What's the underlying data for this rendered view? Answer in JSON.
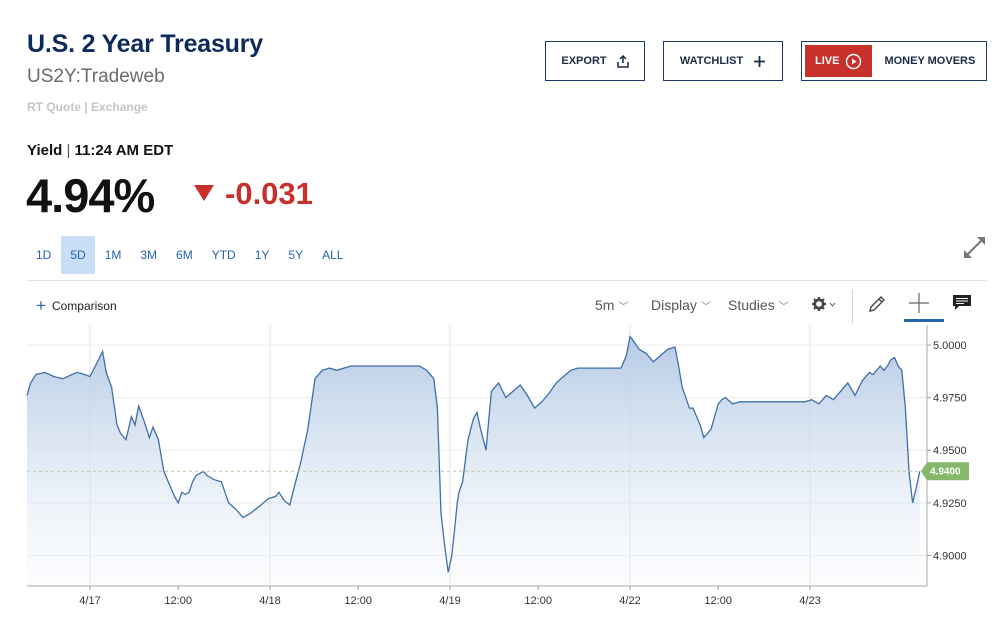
{
  "header": {
    "title": "U.S. 2 Year Treasury",
    "symbol": "US2Y:Tradeweb",
    "quote_source": "RT Quote | Exchange"
  },
  "actions": {
    "export_label": "EXPORT",
    "watchlist_label": "WATCHLIST",
    "live_label": "LIVE",
    "money_movers_label": "MONEY MOVERS"
  },
  "quote": {
    "yield_label": "Yield",
    "separator": "|",
    "time": "11:24 AM EDT",
    "price": "4.94%",
    "change": "-0.031",
    "change_color": "#c8302c"
  },
  "ranges": [
    {
      "label": "1D"
    },
    {
      "label": "5D"
    },
    {
      "label": "1M"
    },
    {
      "label": "3M"
    },
    {
      "label": "6M"
    },
    {
      "label": "YTD"
    },
    {
      "label": "1Y"
    },
    {
      "label": "5Y"
    },
    {
      "label": "ALL"
    }
  ],
  "selected_range": "5D",
  "toolbar": {
    "comparison_label": "Comparison",
    "interval_label": "5m",
    "display_label": "Display",
    "studies_label": "Studies"
  },
  "chart_data": {
    "type": "area",
    "line_color": "#3f6fa8",
    "current_value": 4.94,
    "current_label": "4.9400",
    "current_label_color": "#86b76a",
    "ylim": [
      4.8855,
      5.0095
    ],
    "y_ticks": [
      5.0,
      4.975,
      4.95,
      4.925,
      4.9
    ],
    "y_tick_labels": [
      "5.0000",
      "4.9750",
      "4.9500",
      "4.9250",
      "4.9000"
    ],
    "x_ticks": [
      {
        "t": 0.35,
        "label": "4/17"
      },
      {
        "t": 0.84,
        "label": "12:00"
      },
      {
        "t": 1.35,
        "label": "4/18"
      },
      {
        "t": 1.84,
        "label": "12:00"
      },
      {
        "t": 2.35,
        "label": "4/19"
      },
      {
        "t": 2.84,
        "label": "12:00"
      },
      {
        "t": 3.35,
        "label": "4/22"
      },
      {
        "t": 3.84,
        "label": "12:00"
      },
      {
        "t": 4.35,
        "label": "4/23"
      }
    ],
    "grid_vertical_t": [
      0.35,
      1.35,
      2.35,
      3.35,
      4.35
    ],
    "grid": true,
    "series": [
      {
        "t": [
          0.0,
          0.02,
          0.05,
          0.1,
          0.15,
          0.2,
          0.25,
          0.28,
          0.32,
          0.35,
          0.38,
          0.42,
          0.44,
          0.47,
          0.5,
          0.52,
          0.55,
          0.58,
          0.6,
          0.62,
          0.65,
          0.68,
          0.7,
          0.73,
          0.76,
          0.8,
          0.82,
          0.84,
          0.86,
          0.88,
          0.9,
          0.92,
          0.94,
          0.96,
          0.98,
          1.0,
          1.04,
          1.08,
          1.12,
          1.16,
          1.2,
          1.24,
          1.27,
          1.3,
          1.34,
          1.38,
          1.4,
          1.43,
          1.46,
          1.48,
          1.52,
          1.56,
          1.6,
          1.64,
          1.68,
          1.72,
          1.76,
          1.8,
          1.84,
          1.88,
          1.92,
          1.96,
          2.0,
          2.06,
          2.12,
          2.18,
          2.22,
          2.26,
          2.28,
          2.3,
          2.32,
          2.34,
          2.36,
          2.38,
          2.39,
          2.4,
          2.42,
          2.45,
          2.48,
          2.5,
          2.52,
          2.55,
          2.58,
          2.62,
          2.66,
          2.7,
          2.74,
          2.78,
          2.82,
          2.86,
          2.9,
          2.94,
          2.98,
          3.02,
          3.06,
          3.1,
          3.14,
          3.18,
          3.22,
          3.26,
          3.3,
          3.33,
          3.35,
          3.36,
          3.4,
          3.44,
          3.48,
          3.52,
          3.56,
          3.6,
          3.62,
          3.64,
          3.66,
          3.68,
          3.7,
          3.72,
          3.74,
          3.76,
          3.78,
          3.8,
          3.82,
          3.84,
          3.86,
          3.88,
          3.92,
          3.96,
          4.0,
          4.04,
          4.08,
          4.12,
          4.16,
          4.2,
          4.24,
          4.28,
          4.32,
          4.36,
          4.4,
          4.44,
          4.48,
          4.52,
          4.56,
          4.6,
          4.64,
          4.66,
          4.68,
          4.7,
          4.72,
          4.74,
          4.76,
          4.78,
          4.8,
          4.82,
          4.84,
          4.86,
          4.88,
          4.9,
          4.92,
          4.94,
          4.96
        ],
        "values": [
          4.976,
          4.982,
          4.986,
          4.987,
          4.985,
          4.984,
          4.986,
          4.987,
          4.986,
          4.985,
          4.99,
          4.997,
          4.987,
          4.98,
          4.962,
          4.958,
          4.955,
          4.966,
          4.962,
          4.971,
          4.964,
          4.956,
          4.961,
          4.955,
          4.94,
          4.932,
          4.928,
          4.925,
          4.93,
          4.929,
          4.93,
          4.935,
          4.938,
          4.939,
          4.94,
          4.938,
          4.936,
          4.935,
          4.925,
          4.922,
          4.918,
          4.92,
          4.922,
          4.924,
          4.927,
          4.928,
          4.93,
          4.926,
          4.924,
          4.931,
          4.944,
          4.96,
          4.984,
          4.988,
          4.989,
          4.988,
          4.989,
          4.99,
          4.99,
          4.99,
          4.99,
          4.99,
          4.99,
          4.99,
          4.99,
          4.99,
          4.988,
          4.984,
          4.97,
          4.92,
          4.905,
          4.892,
          4.9,
          4.916,
          4.925,
          4.93,
          4.935,
          4.955,
          4.965,
          4.968,
          4.96,
          4.95,
          4.978,
          4.982,
          4.975,
          4.978,
          4.981,
          4.976,
          4.97,
          4.973,
          4.977,
          4.982,
          4.985,
          4.988,
          4.989,
          4.989,
          4.989,
          4.989,
          4.989,
          4.989,
          4.989,
          4.995,
          5.004,
          5.003,
          4.998,
          4.996,
          4.992,
          4.995,
          4.998,
          4.999,
          4.99,
          4.98,
          4.975,
          4.97,
          4.97,
          4.966,
          4.962,
          4.956,
          4.958,
          4.96,
          4.966,
          4.972,
          4.974,
          4.975,
          4.972,
          4.973,
          4.973,
          4.973,
          4.973,
          4.973,
          4.973,
          4.973,
          4.973,
          4.973,
          4.973,
          4.974,
          4.972,
          4.976,
          4.974,
          4.978,
          4.982,
          4.976,
          4.983,
          4.985,
          4.987,
          4.986,
          4.988,
          4.99,
          4.988,
          4.99,
          4.993,
          4.994,
          4.99,
          4.988,
          4.97,
          4.94,
          4.925,
          4.932,
          4.94
        ]
      }
    ]
  }
}
